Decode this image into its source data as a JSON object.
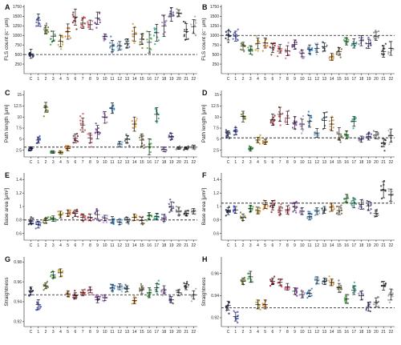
{
  "figure": {
    "categories": [
      "C",
      "1",
      "2",
      "3",
      "4",
      "5",
      "6",
      "7",
      "8",
      "9",
      "10",
      "11",
      "12",
      "13",
      "14",
      "15",
      "16",
      "17",
      "18",
      "19",
      "20",
      "21",
      "22"
    ]
  },
  "chart_data": [
    {
      "panel": "A",
      "type": "scatter",
      "ylabel": "FLS count (c⁻ μm)",
      "ylim": [
        0,
        1800
      ],
      "yticks": [
        250,
        500,
        750,
        1000,
        1250,
        1500,
        1750
      ],
      "reference": 500,
      "means": [
        520,
        1400,
        1150,
        980,
        850,
        1100,
        1480,
        1320,
        1280,
        1450,
        970,
        720,
        730,
        790,
        1030,
        900,
        820,
        1070,
        1250,
        1550,
        1580,
        1100,
        1230
      ],
      "spreads": [
        120,
        160,
        110,
        130,
        150,
        200,
        210,
        140,
        120,
        160,
        70,
        150,
        110,
        120,
        180,
        140,
        280,
        220,
        280,
        180,
        90,
        210,
        180
      ]
    },
    {
      "panel": "B",
      "type": "scatter",
      "ylabel": "FLS count (c⁻ μm)",
      "ylim": [
        0,
        1800
      ],
      "yticks": [
        250,
        500,
        750,
        1000,
        1250,
        1500,
        1750
      ],
      "reference": 1000,
      "means": [
        1000,
        980,
        720,
        620,
        790,
        800,
        670,
        650,
        600,
        760,
        530,
        640,
        660,
        700,
        440,
        580,
        840,
        790,
        860,
        780,
        980,
        580,
        660
      ],
      "spreads": [
        120,
        130,
        100,
        110,
        140,
        130,
        120,
        110,
        130,
        120,
        90,
        110,
        100,
        100,
        90,
        100,
        90,
        120,
        130,
        120,
        110,
        150,
        180
      ]
    },
    {
      "panel": "C",
      "type": "scatter",
      "ylabel": "Path length [μm]",
      "ylim": [
        1,
        16
      ],
      "yticks": [
        2.5,
        5,
        7.5,
        10,
        12.5,
        15
      ],
      "reference": 3.2,
      "means": [
        2.9,
        4.8,
        12.2,
        2.1,
        2.0,
        2.9,
        5.2,
        8.2,
        5.3,
        6.6,
        9.9,
        12.0,
        3.9,
        5.0,
        8.4,
        4.8,
        3.3,
        10.6,
        2.7,
        5.6,
        3.0,
        3.0,
        3.2
      ],
      "spreads": [
        0.4,
        0.7,
        1.1,
        0.3,
        0.3,
        0.5,
        1.0,
        1.6,
        1.1,
        1.5,
        1.3,
        1.2,
        0.6,
        0.8,
        1.6,
        1.4,
        1.8,
        1.5,
        0.5,
        0.7,
        0.3,
        0.3,
        0.4
      ]
    },
    {
      "panel": "D",
      "type": "scatter",
      "ylabel": "Path length [μm]",
      "ylim": [
        1,
        16
      ],
      "yticks": [
        2.5,
        5,
        7.5,
        10,
        12.5,
        15
      ],
      "reference": 5.3,
      "means": [
        6.2,
        6.8,
        10.1,
        2.8,
        4.8,
        4.4,
        9.4,
        10.6,
        9.8,
        8.7,
        8.4,
        9.0,
        6.4,
        9.2,
        8.4,
        6.2,
        6.0,
        9.0,
        5.0,
        5.6,
        5.9,
        4.2,
        5.8
      ],
      "spreads": [
        0.7,
        0.8,
        1.2,
        0.5,
        0.6,
        0.6,
        1.3,
        1.6,
        1.5,
        1.4,
        1.1,
        1.3,
        1.0,
        1.8,
        1.5,
        1.4,
        0.9,
        1.1,
        0.7,
        0.8,
        0.8,
        0.9,
        1.5
      ]
    },
    {
      "panel": "E",
      "type": "scatter",
      "ylabel": "Base area [μm²]",
      "ylim": [
        0.5,
        1.5
      ],
      "yticks": [
        0.6,
        0.8,
        1.0,
        1.2,
        1.4
      ],
      "reference": 0.8,
      "means": [
        0.78,
        0.73,
        0.79,
        0.82,
        0.88,
        0.9,
        0.9,
        0.84,
        0.84,
        0.88,
        0.83,
        0.8,
        0.77,
        0.8,
        0.84,
        0.79,
        0.86,
        0.85,
        0.83,
        1.0,
        0.93,
        0.9,
        0.93
      ],
      "spreads": [
        0.04,
        0.05,
        0.04,
        0.04,
        0.05,
        0.05,
        0.05,
        0.05,
        0.05,
        0.06,
        0.04,
        0.05,
        0.04,
        0.04,
        0.05,
        0.05,
        0.05,
        0.05,
        0.05,
        0.07,
        0.06,
        0.04,
        0.04
      ]
    },
    {
      "panel": "F",
      "type": "scatter",
      "ylabel": "Base area [μm²]",
      "ylim": [
        0.5,
        1.5
      ],
      "yticks": [
        0.6,
        0.8,
        1.0,
        1.2,
        1.4
      ],
      "reference": 1.05,
      "means": [
        0.93,
        0.95,
        0.84,
        0.97,
        0.94,
        1.03,
        1.02,
        0.94,
        0.95,
        1.0,
        0.93,
        0.85,
        0.93,
        0.95,
        0.99,
        0.94,
        1.12,
        1.05,
        1.03,
        1.01,
        0.9,
        1.25,
        1.17
      ],
      "spreads": [
        0.05,
        0.05,
        0.05,
        0.05,
        0.05,
        0.06,
        0.07,
        0.06,
        0.06,
        0.06,
        0.05,
        0.05,
        0.05,
        0.05,
        0.06,
        0.06,
        0.06,
        0.07,
        0.07,
        0.07,
        0.05,
        0.12,
        0.09
      ]
    },
    {
      "panel": "G",
      "type": "scatter",
      "ylabel": "Straightness",
      "ylim": [
        0.915,
        0.985
      ],
      "yticks": [
        0.92,
        0.94,
        0.96,
        0.98
      ],
      "reference": 0.947,
      "means": [
        0.951,
        0.937,
        0.956,
        0.967,
        0.969,
        0.948,
        0.946,
        0.949,
        0.952,
        0.942,
        0.944,
        0.954,
        0.955,
        0.953,
        0.941,
        0.952,
        0.949,
        0.954,
        0.952,
        0.942,
        0.949,
        0.955,
        0.947
      ],
      "spreads": [
        0.004,
        0.005,
        0.003,
        0.003,
        0.004,
        0.003,
        0.003,
        0.003,
        0.003,
        0.003,
        0.003,
        0.003,
        0.003,
        0.003,
        0.003,
        0.004,
        0.005,
        0.004,
        0.004,
        0.003,
        0.003,
        0.003,
        0.004
      ]
    },
    {
      "panel": "H",
      "type": "scatter",
      "ylabel": "Straightness",
      "ylim": [
        0.912,
        0.975
      ],
      "yticks": [
        0.92,
        0.94,
        0.96
      ],
      "reference": 0.929,
      "means": [
        0.931,
        0.921,
        0.953,
        0.957,
        0.932,
        0.932,
        0.953,
        0.952,
        0.948,
        0.944,
        0.941,
        0.942,
        0.954,
        0.953,
        0.952,
        0.947,
        0.937,
        0.945,
        0.94,
        0.93,
        0.934,
        0.949,
        0.941
      ],
      "spreads": [
        0.004,
        0.004,
        0.003,
        0.005,
        0.004,
        0.004,
        0.003,
        0.003,
        0.003,
        0.003,
        0.003,
        0.003,
        0.003,
        0.003,
        0.003,
        0.004,
        0.004,
        0.004,
        0.004,
        0.004,
        0.004,
        0.004,
        0.005
      ]
    }
  ],
  "colors": {
    "C": "#1f2a5c",
    "1": "#4b5bd6",
    "2": "#6f7f24",
    "3": "#3fa34d",
    "4": "#c9a227",
    "5": "#e07b1a",
    "6": "#8b1e2d",
    "7": "#d24b4b",
    "8": "#e06d8a",
    "9": "#7b3fa0",
    "10": "#b58fd6",
    "11": "#2d7fc9",
    "12": "#7ab3e0",
    "13": "#556b7a",
    "14": "#e8912c",
    "15": "#7a6a3c",
    "16": "#45b04a",
    "17": "#2ea88a",
    "18": "#9b7cc9",
    "19": "#5a4f9c",
    "20": "#8a8a8a",
    "21": "#3b3b3b",
    "22": "#a9a9a9"
  }
}
